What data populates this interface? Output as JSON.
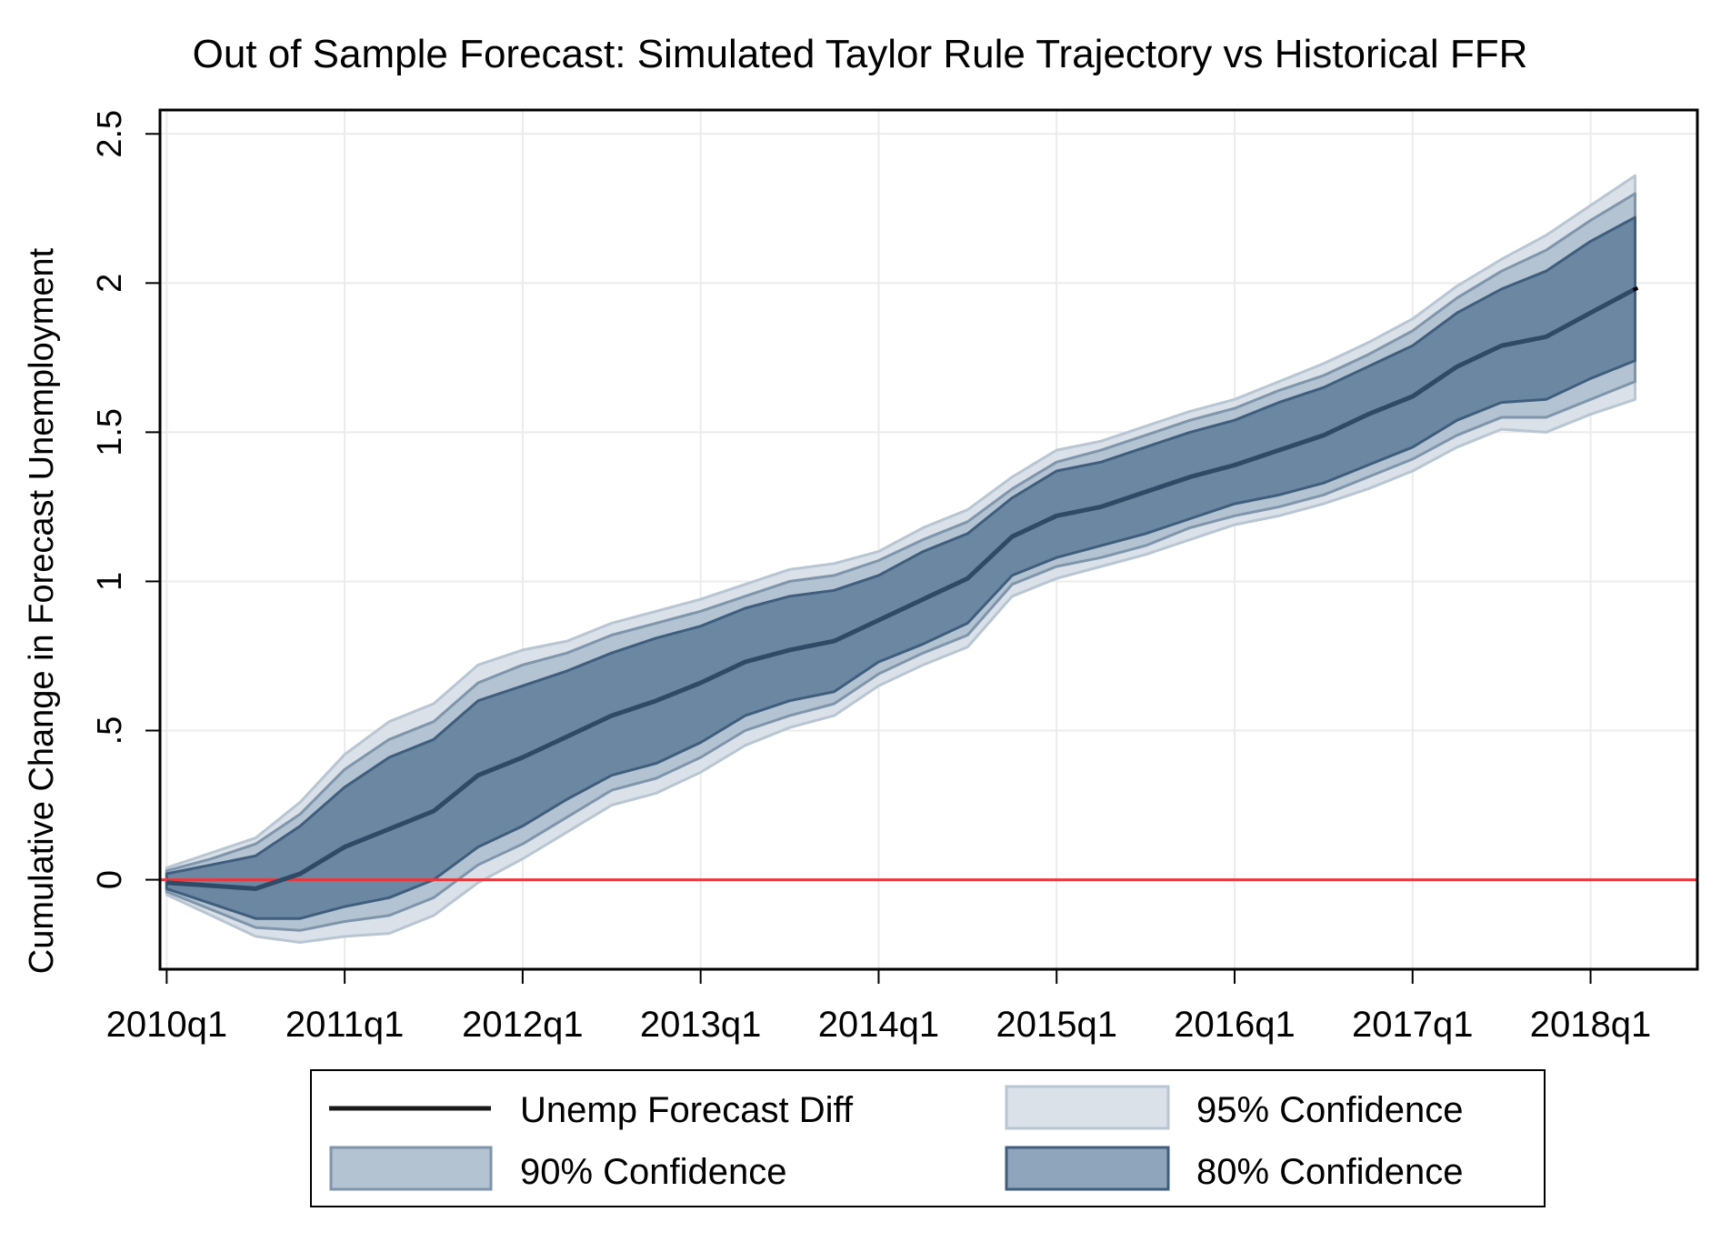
{
  "chart_data": {
    "type": "area",
    "title": "Out of Sample Forecast: Simulated Taylor Rule Trajectory vs Historical FFR",
    "xlabel": "",
    "ylabel": "Cumulative Change in Forecast Unemployment",
    "x_axis": {
      "unit": "quarter",
      "start": "2010q1",
      "range_quarters_from_start": [
        -0.15,
        34.4
      ],
      "ticks": [
        "2010q1",
        "2011q1",
        "2012q1",
        "2013q1",
        "2014q1",
        "2015q1",
        "2016q1",
        "2017q1",
        "2018q1"
      ]
    },
    "ylim": [
      -0.3,
      2.58
    ],
    "yticks": [
      0,
      0.5,
      1,
      1.5,
      2,
      2.5
    ],
    "ytick_labels": [
      "0",
      ".5",
      "1",
      "1.5",
      "2",
      "2.5"
    ],
    "grid": true,
    "reference_line": {
      "y": 0,
      "color": "#e8383d"
    },
    "x": [
      "2010q1",
      "2010q2",
      "2010q3",
      "2010q4",
      "2011q1",
      "2011q2",
      "2011q3",
      "2011q4",
      "2012q1",
      "2012q2",
      "2012q3",
      "2012q4",
      "2013q1",
      "2013q2",
      "2013q3",
      "2013q4",
      "2014q1",
      "2014q2",
      "2014q3",
      "2014q4",
      "2015q1",
      "2015q2",
      "2015q3",
      "2015q4",
      "2016q1",
      "2016q2",
      "2016q3",
      "2016q4",
      "2017q1",
      "2017q2",
      "2017q3",
      "2017q4",
      "2018q1",
      "2018q2"
    ],
    "series": [
      {
        "name": "95% Confidence",
        "kind": "band",
        "fill": "#dae1e8",
        "stroke": "#b8c5d2",
        "upper": [
          0.04,
          0.09,
          0.14,
          0.26,
          0.42,
          0.53,
          0.59,
          0.72,
          0.77,
          0.8,
          0.86,
          0.9,
          0.94,
          0.99,
          1.04,
          1.06,
          1.1,
          1.18,
          1.24,
          1.35,
          1.44,
          1.47,
          1.52,
          1.57,
          1.61,
          1.67,
          1.73,
          1.8,
          1.88,
          1.99,
          2.08,
          2.16,
          2.26,
          2.36
        ],
        "lower": [
          -0.05,
          -0.12,
          -0.19,
          -0.21,
          -0.19,
          -0.18,
          -0.12,
          -0.01,
          0.07,
          0.16,
          0.25,
          0.29,
          0.36,
          0.45,
          0.51,
          0.55,
          0.65,
          0.72,
          0.78,
          0.95,
          1.01,
          1.05,
          1.09,
          1.14,
          1.19,
          1.22,
          1.26,
          1.31,
          1.37,
          1.45,
          1.51,
          1.5,
          1.56,
          1.61
        ]
      },
      {
        "name": "90% Confidence",
        "kind": "band",
        "fill": "#b3c3d1",
        "stroke": "#7f95ab",
        "upper": [
          0.03,
          0.07,
          0.12,
          0.22,
          0.37,
          0.47,
          0.53,
          0.66,
          0.72,
          0.76,
          0.82,
          0.86,
          0.9,
          0.95,
          1.0,
          1.02,
          1.07,
          1.14,
          1.2,
          1.31,
          1.4,
          1.44,
          1.49,
          1.54,
          1.58,
          1.64,
          1.69,
          1.76,
          1.84,
          1.95,
          2.04,
          2.11,
          2.21,
          2.3
        ],
        "lower": [
          -0.04,
          -0.1,
          -0.16,
          -0.17,
          -0.14,
          -0.12,
          -0.06,
          0.05,
          0.12,
          0.21,
          0.3,
          0.34,
          0.41,
          0.5,
          0.55,
          0.59,
          0.69,
          0.76,
          0.82,
          0.99,
          1.05,
          1.08,
          1.12,
          1.18,
          1.22,
          1.25,
          1.29,
          1.35,
          1.41,
          1.49,
          1.55,
          1.55,
          1.61,
          1.67
        ]
      },
      {
        "name": "80% Confidence",
        "kind": "band",
        "fill": "#6c87a1",
        "stroke": "#3f5e7e",
        "upper": [
          0.02,
          0.05,
          0.08,
          0.18,
          0.31,
          0.41,
          0.47,
          0.6,
          0.65,
          0.7,
          0.76,
          0.81,
          0.85,
          0.91,
          0.95,
          0.97,
          1.02,
          1.1,
          1.16,
          1.28,
          1.37,
          1.4,
          1.45,
          1.5,
          1.54,
          1.6,
          1.65,
          1.72,
          1.79,
          1.9,
          1.98,
          2.04,
          2.14,
          2.22
        ],
        "lower": [
          -0.03,
          -0.08,
          -0.13,
          -0.13,
          -0.09,
          -0.06,
          0.0,
          0.11,
          0.18,
          0.27,
          0.35,
          0.39,
          0.46,
          0.55,
          0.6,
          0.63,
          0.73,
          0.79,
          0.86,
          1.02,
          1.08,
          1.12,
          1.16,
          1.21,
          1.26,
          1.29,
          1.33,
          1.39,
          1.45,
          1.54,
          1.6,
          1.61,
          1.68,
          1.74
        ]
      },
      {
        "name": "Unemp Forecast Diff",
        "kind": "line",
        "stroke": "#2f4a66",
        "values": [
          -0.01,
          -0.02,
          -0.03,
          0.02,
          0.11,
          0.17,
          0.23,
          0.35,
          0.41,
          0.48,
          0.55,
          0.6,
          0.66,
          0.73,
          0.77,
          0.8,
          0.87,
          0.94,
          1.01,
          1.15,
          1.22,
          1.25,
          1.3,
          1.35,
          1.39,
          1.44,
          1.49,
          1.56,
          1.62,
          1.72,
          1.79,
          1.82,
          1.9,
          1.98
        ]
      }
    ],
    "legend": {
      "placement": "bottom",
      "entries": [
        "Unemp Forecast Diff",
        "95% Confidence",
        "90% Confidence",
        "80% Confidence"
      ],
      "swatches": {
        "Unemp Forecast Diff": {
          "type": "line",
          "stroke": "#1a1a1a"
        },
        "95% Confidence": {
          "type": "box",
          "fill": "#dae1e8",
          "stroke": "#b8c5d2"
        },
        "90% Confidence": {
          "type": "box",
          "fill": "#b3c3d1",
          "stroke": "#7f95ab"
        },
        "80% Confidence": {
          "type": "box",
          "fill": "#8fa5bc",
          "stroke": "#3f5e7e"
        }
      }
    }
  }
}
